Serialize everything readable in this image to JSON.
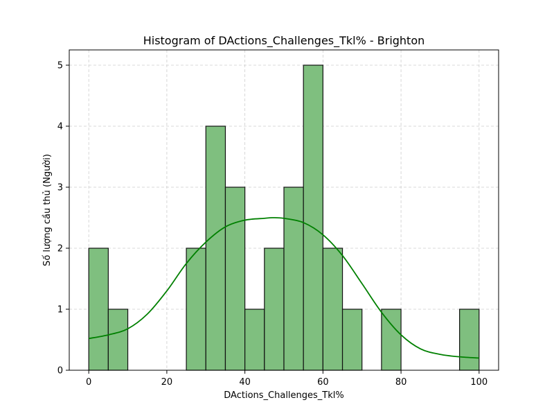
{
  "chart_data": {
    "type": "bar",
    "subtype": "histogram",
    "title": "Histogram of DActions_Challenges_Tkl% - Brighton",
    "xlabel": "DActions_Challenges_Tkl%",
    "ylabel": "Số lượng cầu thủ (Người)",
    "xlim": [
      -5,
      105
    ],
    "ylim": [
      0,
      5.25
    ],
    "bin_width": 5,
    "bins": [
      {
        "x0": 0,
        "count": 2
      },
      {
        "x0": 5,
        "count": 1
      },
      {
        "x0": 25,
        "count": 2
      },
      {
        "x0": 30,
        "count": 4
      },
      {
        "x0": 35,
        "count": 3
      },
      {
        "x0": 40,
        "count": 1
      },
      {
        "x0": 45,
        "count": 2
      },
      {
        "x0": 50,
        "count": 3
      },
      {
        "x0": 55,
        "count": 5
      },
      {
        "x0": 60,
        "count": 2
      },
      {
        "x0": 65,
        "count": 1
      },
      {
        "x0": 75,
        "count": 1
      },
      {
        "x0": 95,
        "count": 1
      }
    ],
    "kde": {
      "x": [
        0,
        5,
        10,
        15,
        20,
        25,
        30,
        35,
        40,
        45,
        47,
        50,
        55,
        60,
        65,
        70,
        75,
        80,
        85,
        90,
        95,
        100
      ],
      "y": [
        0.52,
        0.58,
        0.68,
        0.92,
        1.3,
        1.75,
        2.1,
        2.35,
        2.46,
        2.49,
        2.5,
        2.49,
        2.42,
        2.22,
        1.88,
        1.42,
        0.95,
        0.58,
        0.35,
        0.26,
        0.22,
        0.2
      ]
    },
    "xticks": [
      0,
      20,
      40,
      60,
      80,
      100
    ],
    "yticks": [
      0,
      1,
      2,
      3,
      4,
      5
    ],
    "grid": true,
    "colors": {
      "bar_fill": "#7fbf7f",
      "bar_edge": "#111111",
      "kde": "#008000"
    }
  }
}
